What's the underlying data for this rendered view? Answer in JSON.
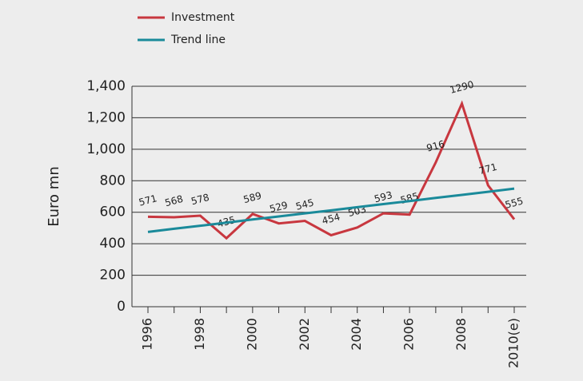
{
  "chart_data": {
    "type": "line",
    "y_label": "Euro mn",
    "categories": [
      "1996",
      null,
      "1998",
      null,
      "2000",
      null,
      "2002",
      null,
      "2004",
      null,
      "2006",
      null,
      "2008",
      null,
      "2010(e)"
    ],
    "series": [
      {
        "name": "Investment",
        "color": "#c8373f",
        "values": [
          571,
          568,
          578,
          435,
          589,
          529,
          545,
          454,
          503,
          593,
          585,
          916,
          1290,
          771,
          555
        ]
      },
      {
        "name": "Trend line",
        "color": "#1a8a9a",
        "values": [
          475,
          495,
          514,
          534,
          554,
          573,
          593,
          612,
          632,
          652,
          671,
          691,
          710,
          730,
          750
        ]
      }
    ],
    "ylim": [
      0,
      1400
    ],
    "yticks": [
      0,
      200,
      400,
      600,
      800,
      {
        "value": 1000,
        "label": "1,000"
      },
      {
        "value": 1200,
        "label": "1,200"
      },
      {
        "value": 1400,
        "label": "1,400"
      }
    ],
    "grid": true
  }
}
